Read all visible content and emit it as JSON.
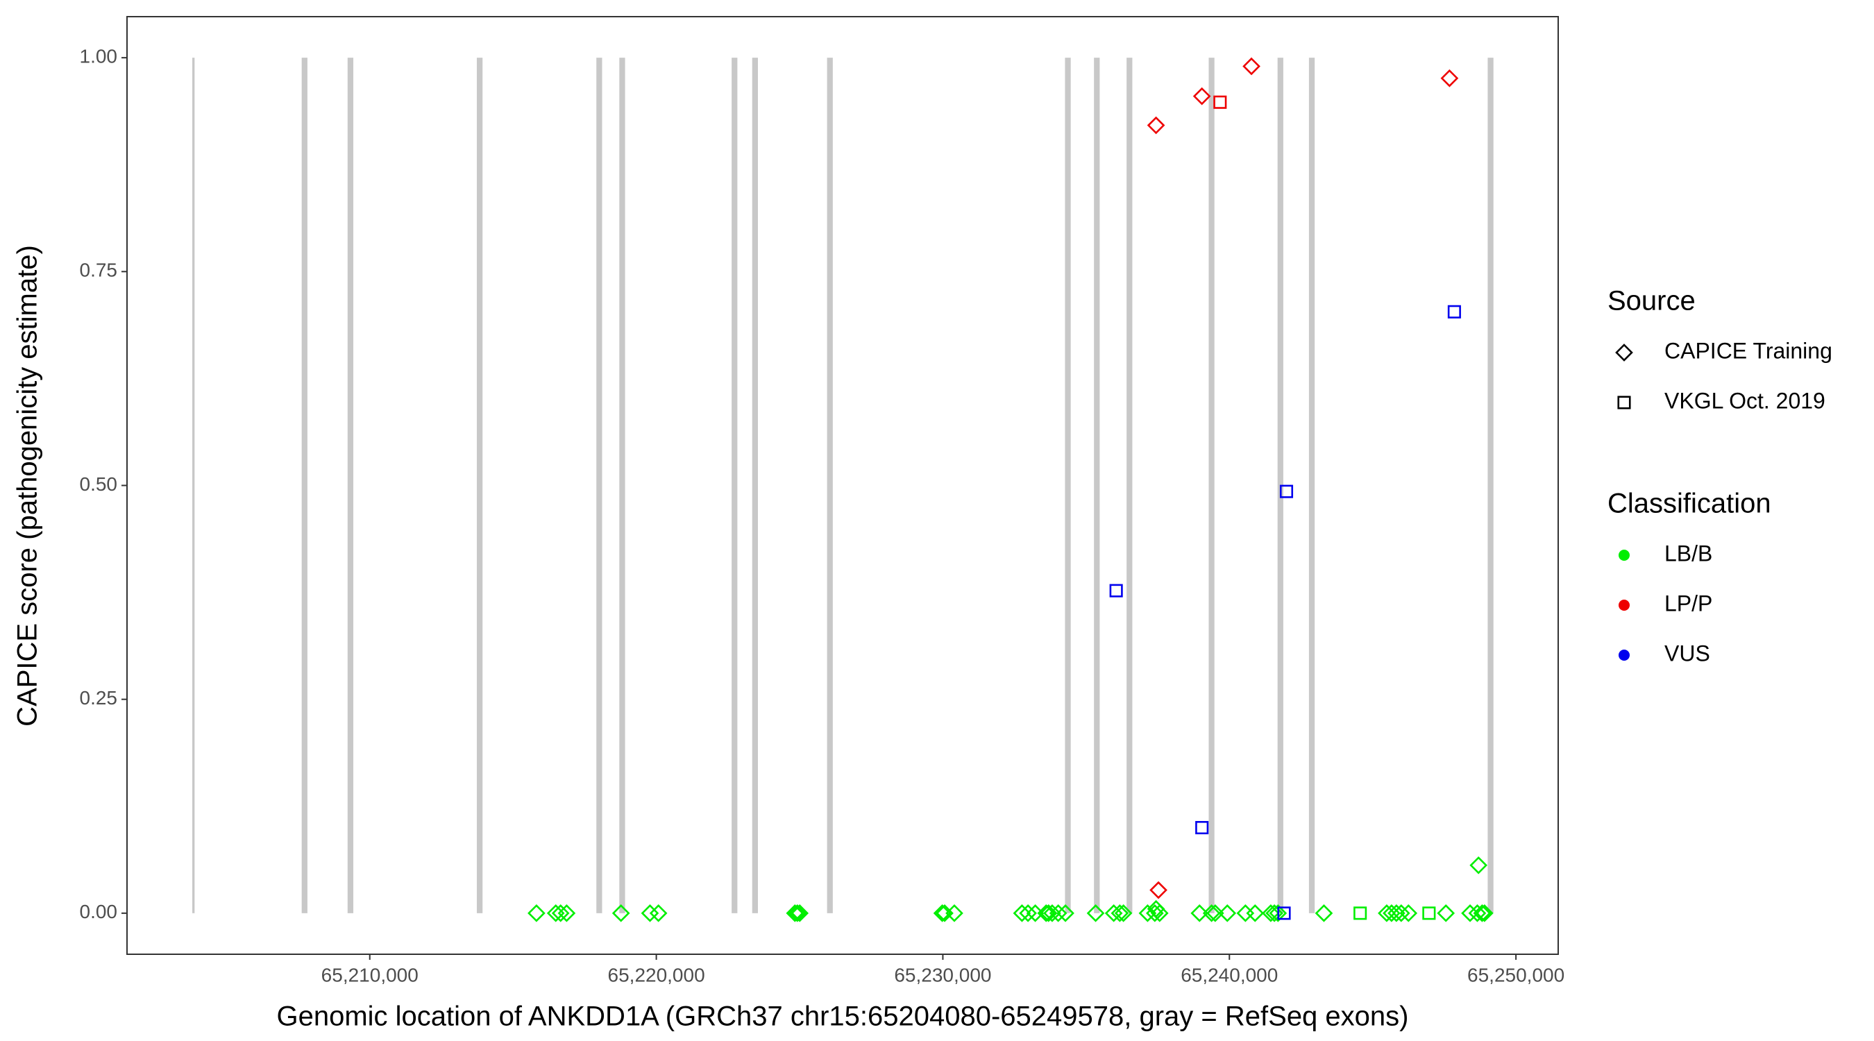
{
  "chart_data": {
    "type": "scatter",
    "xlabel": "Genomic location of ANKDD1A (GRCh37 chr15:65204080-65249578, gray = RefSeq exons)",
    "ylabel": "CAPICE score (pathogenicity estimate)",
    "xlim": [
      65201528,
      65251475
    ],
    "ylim": [
      -0.048,
      1.048
    ],
    "xticks": [
      {
        "value": 65210000,
        "label": "65,210,000"
      },
      {
        "value": 65220000,
        "label": "65,220,000"
      },
      {
        "value": 65230000,
        "label": "65,230,000"
      },
      {
        "value": 65240000,
        "label": "65,240,000"
      },
      {
        "value": 65250000,
        "label": "65,250,000"
      }
    ],
    "yticks": [
      {
        "value": 0,
        "label": "0.00"
      },
      {
        "value": 0.25,
        "label": "0.25"
      },
      {
        "value": 0.5,
        "label": "0.50"
      },
      {
        "value": 0.75,
        "label": "0.75"
      },
      {
        "value": 1,
        "label": "1.00"
      }
    ],
    "exon_color": "#c8c8c8",
    "exons": [
      [
        65203806,
        65203886
      ],
      [
        65207624,
        65207824
      ],
      [
        65209226,
        65209426
      ],
      [
        65213736,
        65213936
      ],
      [
        65217908,
        65218108
      ],
      [
        65218709,
        65218909
      ],
      [
        65222629,
        65222829
      ],
      [
        65223346,
        65223546
      ],
      [
        65225959,
        65226159
      ],
      [
        65234263,
        65234463
      ],
      [
        65235274,
        65235474
      ],
      [
        65236412,
        65236612
      ],
      [
        65239278,
        65239478
      ],
      [
        65241681,
        65241881
      ],
      [
        65242777,
        65242977
      ],
      [
        65249015,
        65249215
      ]
    ],
    "source_title": "Source",
    "sources": [
      {
        "name": "CAPICE Training",
        "shape": "diamond"
      },
      {
        "name": "VKGL Oct. 2019",
        "shape": "square"
      }
    ],
    "classification_title": "Classification",
    "classifications": [
      {
        "name": "LB/B",
        "color": "#00ee00"
      },
      {
        "name": "LP/P",
        "color": "#ee0000"
      },
      {
        "name": "VUS",
        "color": "#0000ee"
      }
    ],
    "series": [
      {
        "source": 0,
        "classification": 0,
        "x": [
          65215817,
          65216491,
          65216660,
          65216870,
          65218767,
          65219779,
          65220074,
          65224837,
          65224921,
          65225005,
          65229979,
          65230063,
          65230401,
          65232761,
          65232972,
          65233225,
          65233604,
          65233688,
          65233815,
          65234026,
          65234278,
          65235332,
          65235964,
          65236175,
          65236302,
          65237145,
          65237398,
          65237566,
          65238957,
          65239379,
          65239505,
          65239927,
          65240559,
          65240896,
          65241444,
          65241570,
          65241697,
          65243299,
          65245490,
          65245659,
          65245828,
          65245996,
          65246249,
          65247556,
          65248399,
          65248652,
          65248820,
          65248904,
          65248694,
          65237440
        ],
        "values": [
          0,
          0,
          0,
          0,
          0,
          0,
          0,
          0,
          0,
          0,
          0,
          0,
          0,
          0,
          0,
          0,
          0,
          0,
          0,
          0,
          0,
          0,
          0,
          0,
          0,
          0,
          0,
          0,
          0,
          0,
          0,
          0,
          0,
          0,
          0,
          0,
          0,
          0,
          0,
          0,
          0,
          0,
          0,
          0,
          0,
          0,
          0,
          0,
          0.056,
          0.005
        ]
      },
      {
        "source": 1,
        "classification": 0,
        "x": [
          65244563,
          65246966
        ],
        "values": [
          0,
          0
        ]
      },
      {
        "source": 0,
        "classification": 1,
        "x": [
          65237440,
          65239041,
          65240770,
          65247682,
          65237524
        ],
        "values": [
          0.921,
          0.955,
          0.99,
          0.976,
          0.027
        ]
      },
      {
        "source": 1,
        "classification": 1,
        "x": [
          65239674
        ],
        "values": [
          0.948
        ]
      },
      {
        "source": 1,
        "classification": 2,
        "x": [
          65236049,
          65247851,
          65241992,
          65239041,
          65241908
        ],
        "values": [
          0.377,
          0.703,
          0.493,
          0.1,
          0
        ]
      }
    ]
  }
}
